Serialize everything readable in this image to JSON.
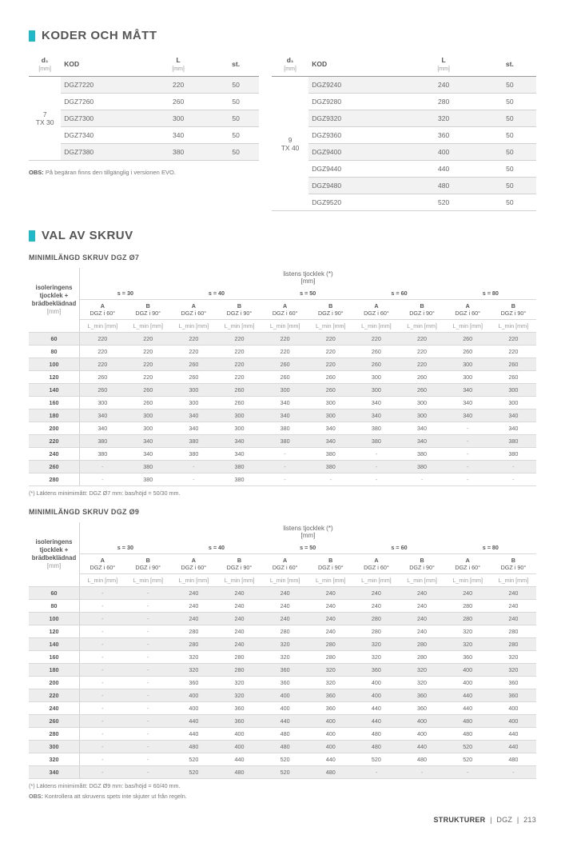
{
  "accent_color": "#1fb8c9",
  "section1": {
    "title": "KODER OCH MÅTT",
    "left_table": {
      "headers": {
        "d1": "d₁",
        "kod": "KOD",
        "L": "L",
        "st": "st."
      },
      "units": {
        "d1": "[mm]",
        "L": "[mm]"
      },
      "rowspan": "7\nTX 30",
      "rows": [
        {
          "kod": "DGZ7220",
          "L": "220",
          "st": "50"
        },
        {
          "kod": "DGZ7260",
          "L": "260",
          "st": "50"
        },
        {
          "kod": "DGZ7300",
          "L": "300",
          "st": "50"
        },
        {
          "kod": "DGZ7340",
          "L": "340",
          "st": "50"
        },
        {
          "kod": "DGZ7380",
          "L": "380",
          "st": "50"
        }
      ]
    },
    "right_table": {
      "headers": {
        "d1": "d₁",
        "kod": "KOD",
        "L": "L",
        "st": "st."
      },
      "units": {
        "d1": "[mm]",
        "L": "[mm]"
      },
      "rowspan": "9\nTX 40",
      "rows": [
        {
          "kod": "DGZ9240",
          "L": "240",
          "st": "50"
        },
        {
          "kod": "DGZ9280",
          "L": "280",
          "st": "50"
        },
        {
          "kod": "DGZ9320",
          "L": "320",
          "st": "50"
        },
        {
          "kod": "DGZ9360",
          "L": "360",
          "st": "50"
        },
        {
          "kod": "DGZ9400",
          "L": "400",
          "st": "50"
        },
        {
          "kod": "DGZ9440",
          "L": "440",
          "st": "50"
        },
        {
          "kod": "DGZ9480",
          "L": "480",
          "st": "50"
        },
        {
          "kod": "DGZ9520",
          "L": "520",
          "st": "50"
        }
      ]
    },
    "obs": "OBS: På begäran finns den tillgänglig i versionen EVO."
  },
  "section2": {
    "title": "VAL AV SKRUV",
    "table1_title": "MINIMILÄNGD SKRUV DGZ Ø7",
    "table2_title": "MINIMILÄNGD SKRUV DGZ Ø9",
    "matrix_header": {
      "rowlabel": "isoleringens\ntjocklek +\nbrädbeklädnad",
      "rowlabel_unit": "[mm]",
      "top": "listens tjocklek (*)\n[mm]",
      "s_groups": [
        "s = 30",
        "s = 40",
        "s = 50",
        "s = 60",
        "s = 80"
      ],
      "ab": {
        "A": "A",
        "B": "B"
      },
      "ab_sub": {
        "A": "DGZ i 60°",
        "B": "DGZ i 90°"
      },
      "lmin": "L_min [mm]"
    },
    "table1": {
      "row_keys": [
        "60",
        "80",
        "100",
        "120",
        "140",
        "160",
        "180",
        "200",
        "220",
        "240",
        "260",
        "280"
      ],
      "rows": [
        [
          "220",
          "220",
          "220",
          "220",
          "220",
          "220",
          "220",
          "220",
          "260",
          "220"
        ],
        [
          "220",
          "220",
          "220",
          "220",
          "220",
          "220",
          "260",
          "220",
          "260",
          "220"
        ],
        [
          "220",
          "220",
          "260",
          "220",
          "260",
          "220",
          "260",
          "220",
          "300",
          "260"
        ],
        [
          "260",
          "220",
          "260",
          "220",
          "260",
          "260",
          "300",
          "260",
          "300",
          "260"
        ],
        [
          "260",
          "260",
          "300",
          "260",
          "300",
          "260",
          "300",
          "260",
          "340",
          "300"
        ],
        [
          "300",
          "260",
          "300",
          "260",
          "340",
          "300",
          "340",
          "300",
          "340",
          "300"
        ],
        [
          "340",
          "300",
          "340",
          "300",
          "340",
          "300",
          "340",
          "300",
          "340",
          "340"
        ],
        [
          "340",
          "300",
          "340",
          "300",
          "380",
          "340",
          "380",
          "340",
          "-",
          "340"
        ],
        [
          "380",
          "340",
          "380",
          "340",
          "380",
          "340",
          "380",
          "340",
          "-",
          "380"
        ],
        [
          "380",
          "340",
          "380",
          "340",
          "-",
          "380",
          "-",
          "380",
          "-",
          "380"
        ],
        [
          "-",
          "380",
          "-",
          "380",
          "-",
          "380",
          "-",
          "380",
          "-",
          "-"
        ],
        [
          "-",
          "380",
          "-",
          "380",
          "-",
          "-",
          "-",
          "-",
          "-",
          "-"
        ]
      ]
    },
    "table2": {
      "row_keys": [
        "60",
        "80",
        "100",
        "120",
        "140",
        "160",
        "180",
        "200",
        "220",
        "240",
        "260",
        "280",
        "300",
        "320",
        "340"
      ],
      "rows": [
        [
          "-",
          "-",
          "240",
          "240",
          "240",
          "240",
          "240",
          "240",
          "240",
          "240"
        ],
        [
          "-",
          "-",
          "240",
          "240",
          "240",
          "240",
          "240",
          "240",
          "280",
          "240"
        ],
        [
          "-",
          "-",
          "240",
          "240",
          "240",
          "240",
          "280",
          "240",
          "280",
          "240"
        ],
        [
          "-",
          "-",
          "280",
          "240",
          "280",
          "240",
          "280",
          "240",
          "320",
          "280"
        ],
        [
          "-",
          "-",
          "280",
          "240",
          "320",
          "280",
          "320",
          "280",
          "320",
          "280"
        ],
        [
          "-",
          "-",
          "320",
          "280",
          "320",
          "280",
          "320",
          "280",
          "360",
          "320"
        ],
        [
          "-",
          "-",
          "320",
          "280",
          "360",
          "320",
          "360",
          "320",
          "400",
          "320"
        ],
        [
          "-",
          "-",
          "360",
          "320",
          "360",
          "320",
          "400",
          "320",
          "400",
          "360"
        ],
        [
          "-",
          "-",
          "400",
          "320",
          "400",
          "360",
          "400",
          "360",
          "440",
          "360"
        ],
        [
          "-",
          "-",
          "400",
          "360",
          "400",
          "360",
          "440",
          "360",
          "440",
          "400"
        ],
        [
          "-",
          "-",
          "440",
          "360",
          "440",
          "400",
          "440",
          "400",
          "480",
          "400"
        ],
        [
          "-",
          "-",
          "440",
          "400",
          "480",
          "400",
          "480",
          "400",
          "480",
          "440"
        ],
        [
          "-",
          "-",
          "480",
          "400",
          "480",
          "400",
          "480",
          "440",
          "520",
          "440"
        ],
        [
          "-",
          "-",
          "520",
          "440",
          "520",
          "440",
          "520",
          "480",
          "520",
          "480"
        ],
        [
          "-",
          "-",
          "520",
          "480",
          "520",
          "480",
          "-",
          "-",
          "-",
          "-"
        ]
      ]
    },
    "footnote1": "(*) Läktens minimimått: DGZ Ø7 mm: bas/höjd = 50/30 mm.",
    "footnote2": "(*) Läktens minimimått: DGZ Ø9 mm: bas/höjd = 60/40 mm.",
    "obs2": "OBS: Kontrollera att skruvens spets inte skjuter ut från regeln."
  },
  "footer": {
    "left": "STRUKTURER",
    "mid": "DGZ",
    "page": "213"
  }
}
